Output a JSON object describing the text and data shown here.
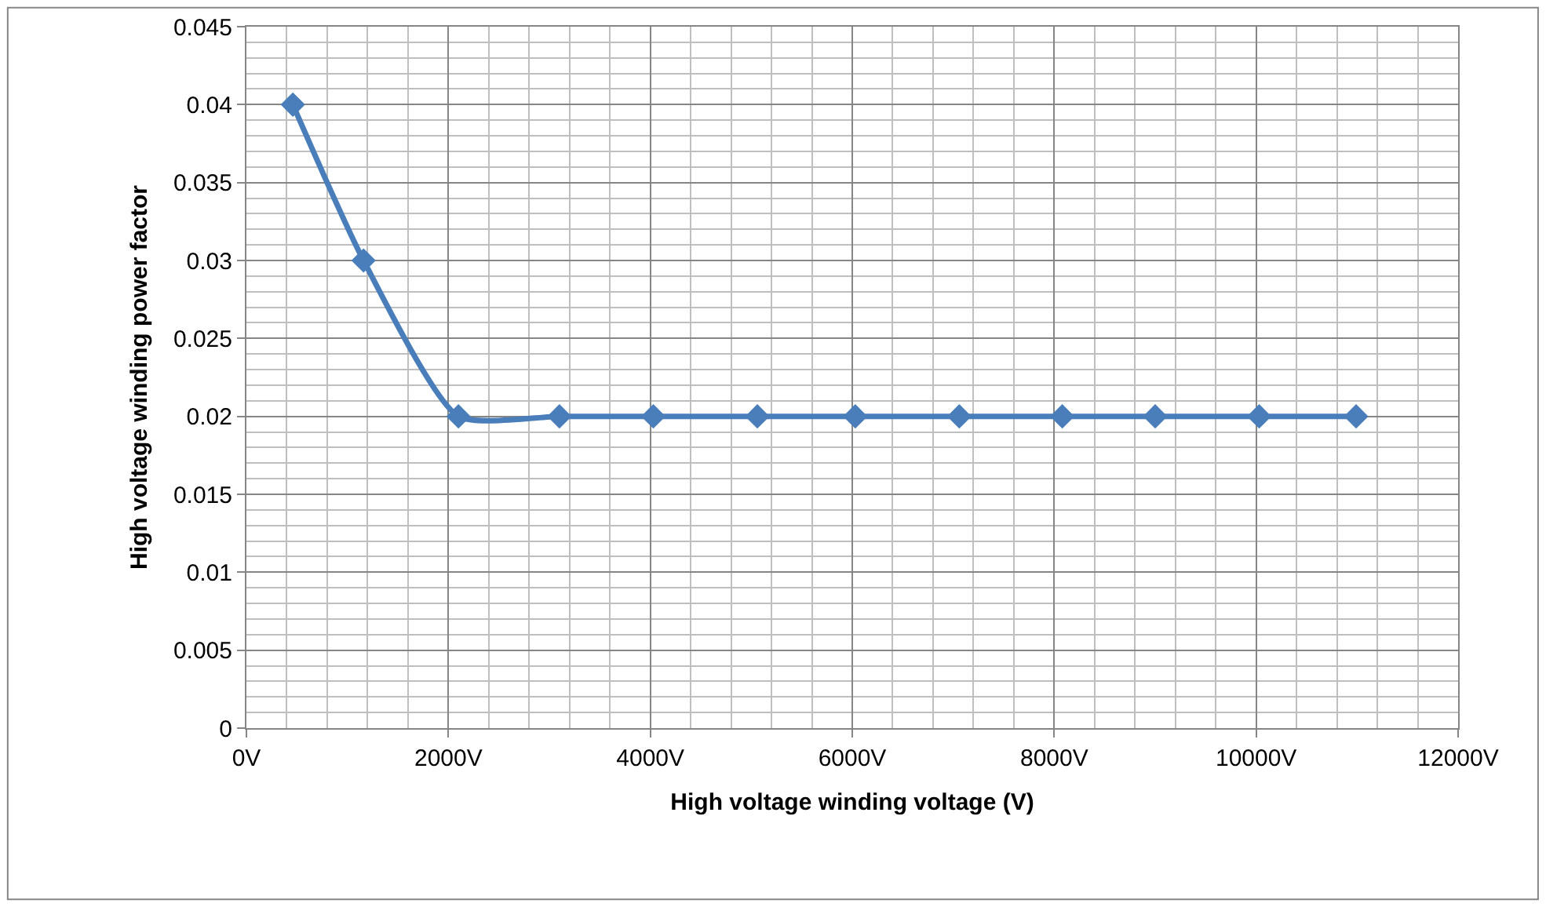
{
  "chart_data": {
    "type": "line",
    "xlabel": "High voltage winding voltage (V)",
    "ylabel": "High voltage winding power factor",
    "x": [
      460,
      1160,
      2100,
      3100,
      4030,
      5060,
      6030,
      7060,
      8080,
      9000,
      10030,
      10990
    ],
    "series": [
      {
        "color": "#4a7ebb",
        "values": [
          0.04,
          0.03,
          0.02,
          0.02,
          0.02,
          0.02,
          0.02,
          0.02,
          0.02,
          0.02,
          0.02,
          0.02
        ]
      }
    ],
    "xlim": [
      0,
      12000
    ],
    "xticks": [
      {
        "value": 0,
        "label": "0V"
      },
      {
        "value": 2000,
        "label": "2000V"
      },
      {
        "value": 4000,
        "label": "4000V"
      },
      {
        "value": 6000,
        "label": "6000V"
      },
      {
        "value": 8000,
        "label": "8000V"
      },
      {
        "value": 10000,
        "label": "10000V"
      },
      {
        "value": 12000,
        "label": "12000V"
      }
    ],
    "ylim": [
      0,
      0.045
    ],
    "yticks": [
      0,
      0.005,
      0.01,
      0.015,
      0.02,
      0.025,
      0.03,
      0.035,
      0.04,
      0.045
    ],
    "grid": true,
    "marker": "diamond",
    "line_style": "solid"
  }
}
